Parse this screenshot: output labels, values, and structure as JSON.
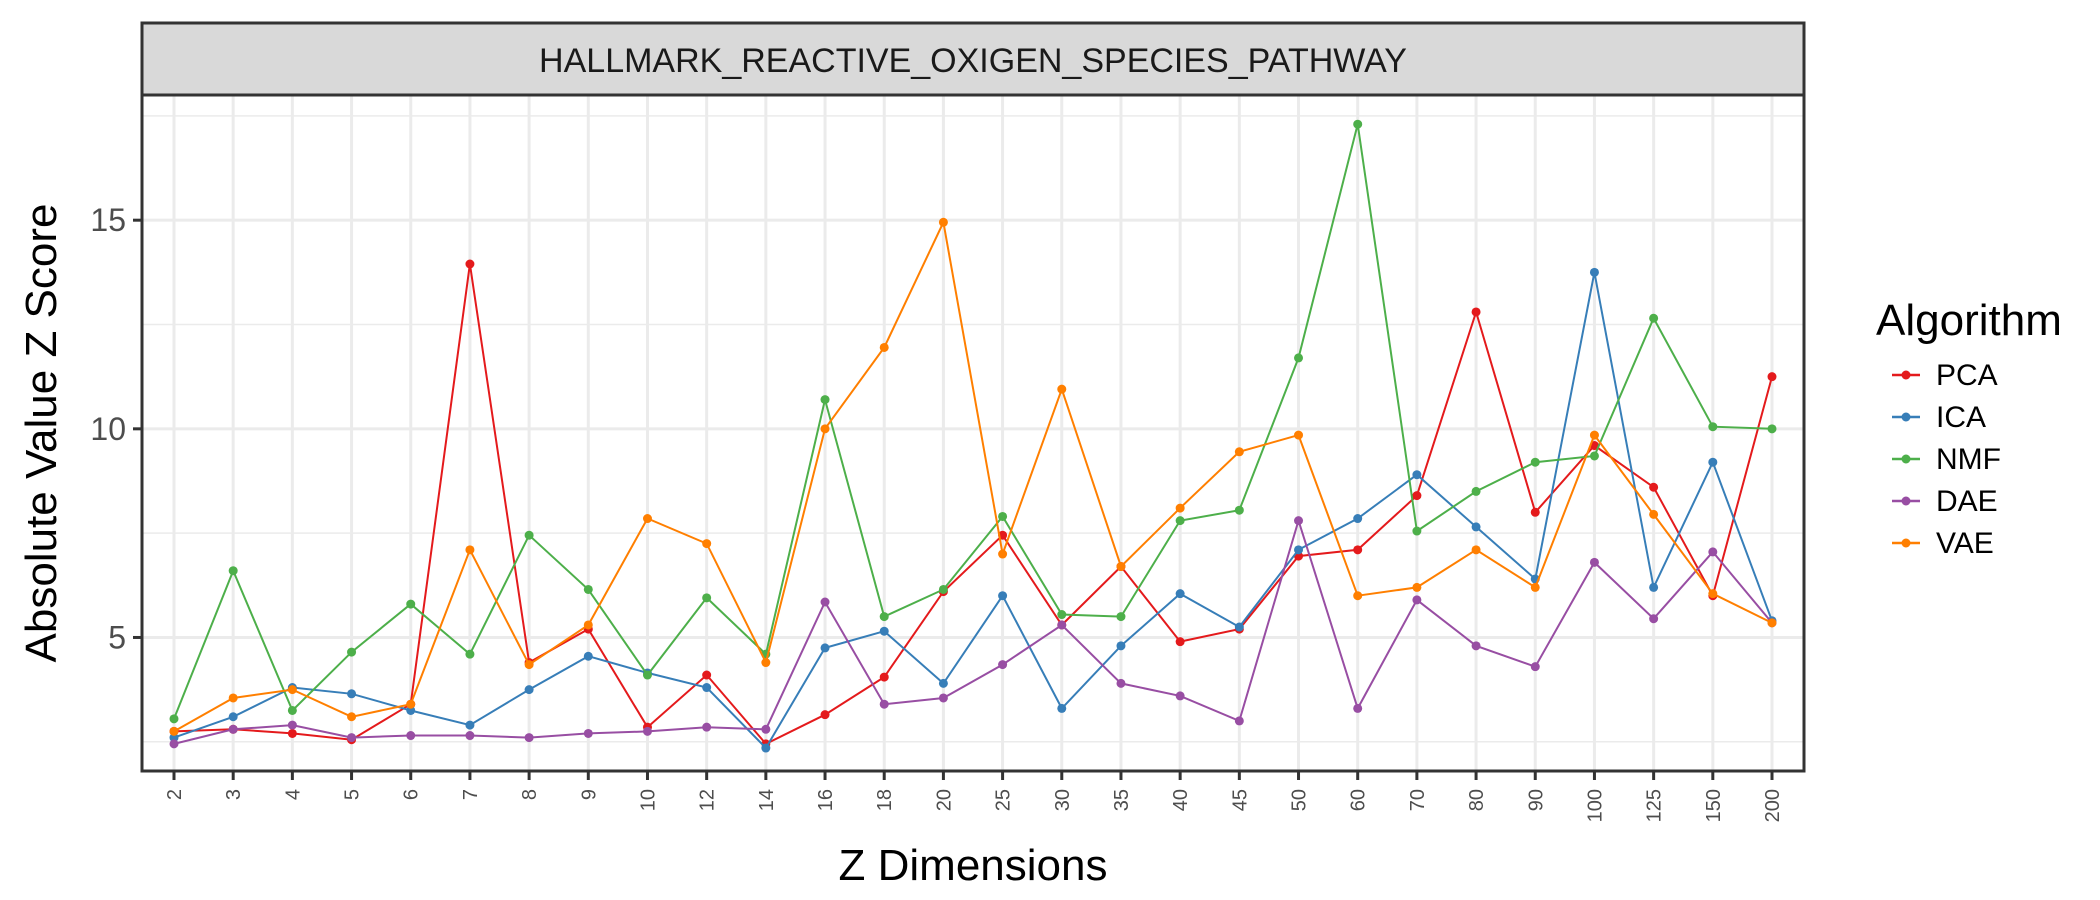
{
  "chart_data": {
    "type": "line",
    "title": "HALLMARK_REACTIVE_OXIGEN_SPECIES_PATHWAY",
    "xlabel": "Z Dimensions",
    "ylabel": "Absolute Value Z Score",
    "categories": [
      "2",
      "3",
      "4",
      "5",
      "6",
      "7",
      "8",
      "9",
      "10",
      "12",
      "14",
      "16",
      "18",
      "20",
      "25",
      "30",
      "35",
      "40",
      "45",
      "50",
      "60",
      "70",
      "80",
      "90",
      "100",
      "125",
      "150",
      "200"
    ],
    "ylim": [
      1.8,
      18.0
    ],
    "yticks": [
      5,
      10,
      15
    ],
    "grid": true,
    "legend": {
      "title": "Algorithm",
      "position": "right"
    },
    "series": [
      {
        "name": "PCA",
        "color": "#e41a1c",
        "values": [
          2.75,
          2.8,
          2.7,
          2.55,
          3.4,
          13.95,
          4.4,
          5.2,
          2.85,
          4.1,
          2.45,
          3.15,
          4.05,
          6.1,
          7.45,
          5.3,
          6.7,
          4.9,
          5.2,
          6.95,
          7.1,
          8.4,
          12.8,
          8.0,
          9.6,
          8.6,
          6.0,
          11.25
        ]
      },
      {
        "name": "ICA",
        "color": "#377eb8",
        "values": [
          2.6,
          3.1,
          3.8,
          3.65,
          3.25,
          2.9,
          3.75,
          4.55,
          4.15,
          3.8,
          2.35,
          4.75,
          5.15,
          3.9,
          6.0,
          3.3,
          4.8,
          6.05,
          5.25,
          7.1,
          7.85,
          8.9,
          7.65,
          6.4,
          13.75,
          6.2,
          9.2,
          5.4
        ]
      },
      {
        "name": "NMF",
        "color": "#4daf4a",
        "values": [
          3.05,
          6.6,
          3.25,
          4.65,
          5.8,
          4.6,
          7.45,
          6.15,
          4.1,
          5.95,
          4.6,
          10.7,
          5.5,
          6.15,
          7.9,
          5.55,
          5.5,
          7.8,
          8.05,
          11.7,
          17.3,
          7.55,
          8.5,
          9.2,
          9.35,
          12.65,
          10.05,
          10.0
        ]
      },
      {
        "name": "DAE",
        "color": "#984ea3",
        "values": [
          2.45,
          2.8,
          2.9,
          2.6,
          2.65,
          2.65,
          2.6,
          2.7,
          2.75,
          2.85,
          2.8,
          5.85,
          3.4,
          3.55,
          4.35,
          5.3,
          3.9,
          3.6,
          3.0,
          7.8,
          3.3,
          5.9,
          4.8,
          4.3,
          6.8,
          5.45,
          7.05,
          5.35
        ]
      },
      {
        "name": "VAE",
        "color": "#ff7f00",
        "values": [
          2.75,
          3.55,
          3.75,
          3.1,
          3.4,
          7.1,
          4.35,
          5.3,
          7.85,
          7.25,
          4.4,
          10.0,
          11.95,
          14.95,
          7.0,
          10.95,
          6.7,
          8.1,
          9.45,
          9.85,
          6.0,
          6.2,
          7.1,
          6.2,
          9.85,
          7.95,
          6.05,
          5.35
        ]
      }
    ]
  }
}
